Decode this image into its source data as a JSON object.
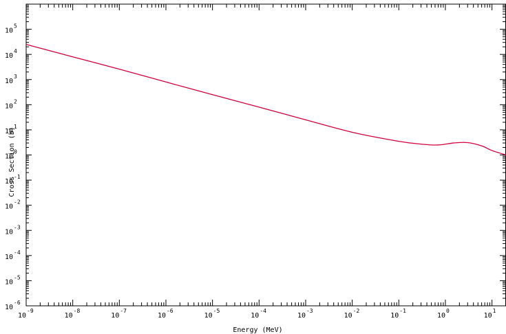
{
  "chart_data": {
    "type": "line",
    "title": "",
    "xlabel": "Energy (MeV)",
    "ylabel": "Cross Section (b)",
    "x_scale": "log",
    "y_scale": "log",
    "xlim": [
      1e-09,
      20
    ],
    "ylim": [
      1e-06,
      1000000.0
    ],
    "grid": false,
    "x_tick_labels": [
      {
        "value": 1e-09,
        "base": "10",
        "exp": "-9"
      },
      {
        "value": 1e-08,
        "base": "10",
        "exp": "-8"
      },
      {
        "value": 1e-07,
        "base": "10",
        "exp": "-7"
      },
      {
        "value": 1e-06,
        "base": "10",
        "exp": "-6"
      },
      {
        "value": 1e-05,
        "base": "10",
        "exp": "-5"
      },
      {
        "value": 0.0001,
        "base": "10",
        "exp": "-4"
      },
      {
        "value": 0.001,
        "base": "10",
        "exp": "-3"
      },
      {
        "value": 0.01,
        "base": "10",
        "exp": "-2"
      },
      {
        "value": 0.1,
        "base": "10",
        "exp": "-1"
      },
      {
        "value": 1,
        "base": "10",
        "exp": "0"
      },
      {
        "value": 10,
        "base": "10",
        "exp": "1"
      }
    ],
    "y_tick_labels": [
      {
        "value": 1e-06,
        "base": "10",
        "exp": "-6"
      },
      {
        "value": 1e-05,
        "base": "10",
        "exp": "-5"
      },
      {
        "value": 0.0001,
        "base": "10",
        "exp": "-4"
      },
      {
        "value": 0.001,
        "base": "10",
        "exp": "-3"
      },
      {
        "value": 0.01,
        "base": "10",
        "exp": "-2"
      },
      {
        "value": 0.1,
        "base": "10",
        "exp": "-1"
      },
      {
        "value": 1,
        "base": "10",
        "exp": "0"
      },
      {
        "value": 10,
        "base": "10",
        "exp": "1"
      },
      {
        "value": 100,
        "base": "10",
        "exp": "2"
      },
      {
        "value": 1000,
        "base": "10",
        "exp": "3"
      },
      {
        "value": 10000,
        "base": "10",
        "exp": "4"
      },
      {
        "value": 100000,
        "base": "10",
        "exp": "5"
      }
    ],
    "series": [
      {
        "color": "#d4003c",
        "points": [
          [
            1e-09,
            25000
          ],
          [
            1e-08,
            8000
          ],
          [
            1e-07,
            2600
          ],
          [
            1e-06,
            800
          ],
          [
            1e-05,
            250
          ],
          [
            0.0001,
            80
          ],
          [
            0.001,
            25
          ],
          [
            0.01,
            8
          ],
          [
            0.1,
            3.5
          ],
          [
            0.3,
            2.7
          ],
          [
            0.7,
            2.5
          ],
          [
            1.5,
            3.0
          ],
          [
            3,
            3.1
          ],
          [
            6,
            2.3
          ],
          [
            10,
            1.5
          ],
          [
            20,
            1.0
          ]
        ]
      }
    ]
  }
}
